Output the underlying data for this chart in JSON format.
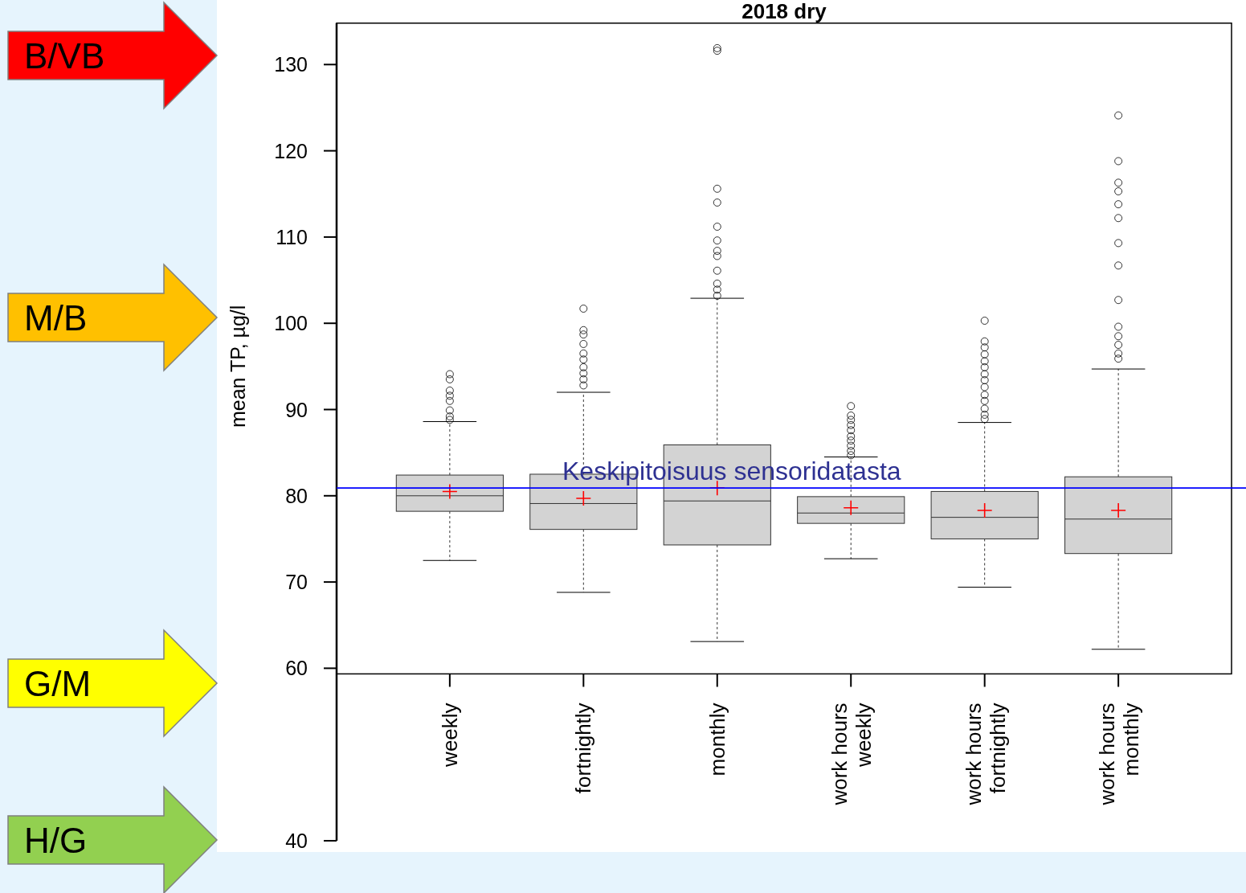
{
  "chart_data": {
    "type": "box",
    "title": "2018 dry",
    "ylabel": "mean TP, µg/l",
    "categories": [
      "weekly",
      "fortnightly",
      "monthly",
      "work hours\nweekly",
      "work hours\nfortnightly",
      "work hours\nmonthly"
    ],
    "boxes": [
      {
        "low": 72.5,
        "q1": 78.2,
        "median": 80.0,
        "q3": 82.4,
        "high": 88.6,
        "mean": 80.5,
        "outliers": [
          94.1,
          93.5,
          92.2,
          91.6,
          91.0,
          89.9,
          89.2,
          88.8
        ]
      },
      {
        "low": 68.8,
        "q1": 76.1,
        "median": 79.1,
        "q3": 82.5,
        "high": 92.0,
        "mean": 79.7,
        "outliers": [
          101.7,
          99.2,
          98.7,
          97.6,
          96.5,
          95.8,
          94.9,
          94.2,
          93.5,
          92.8
        ]
      },
      {
        "low": 63.1,
        "q1": 74.3,
        "median": 79.4,
        "q3": 85.9,
        "high": 102.9,
        "mean": 80.9,
        "outliers": [
          131.9,
          131.6,
          115.6,
          114.0,
          111.2,
          109.6,
          108.4,
          107.8,
          106.1,
          104.6,
          103.9,
          103.2
        ]
      },
      {
        "low": 72.7,
        "q1": 76.8,
        "median": 78.0,
        "q3": 79.9,
        "high": 84.5,
        "mean": 78.6,
        "outliers": [
          90.4,
          89.3,
          88.8,
          88.2,
          87.6,
          86.9,
          86.4,
          85.8,
          85.2,
          84.7
        ]
      },
      {
        "low": 69.4,
        "q1": 75.0,
        "median": 77.5,
        "q3": 80.5,
        "high": 88.5,
        "mean": 78.3,
        "outliers": [
          100.3,
          97.9,
          97.2,
          96.4,
          95.6,
          94.9,
          94.1,
          93.4,
          92.6,
          91.7,
          91.0,
          90.1,
          89.4,
          88.9
        ]
      },
      {
        "low": 62.2,
        "q1": 73.3,
        "median": 77.3,
        "q3": 82.2,
        "high": 94.7,
        "mean": 78.3,
        "outliers": [
          124.1,
          118.8,
          116.3,
          115.3,
          113.8,
          112.2,
          109.3,
          106.7,
          102.7,
          99.6,
          98.5,
          97.5,
          96.5,
          95.9
        ]
      }
    ],
    "color": "#d3d3d3",
    "ylim": [
      40,
      134.8
    ],
    "yticks": [
      40,
      60,
      70,
      80,
      90,
      100,
      110,
      120,
      130
    ],
    "ref_lines": [
      {
        "axis": "y",
        "value": 80.9,
        "label": "Keskipitoisuus sensoridatasta",
        "color": "#0000ff"
      }
    ],
    "annotations": [
      "B/VB",
      "M/B",
      "G/M",
      "H/G"
    ],
    "grid": false
  }
}
